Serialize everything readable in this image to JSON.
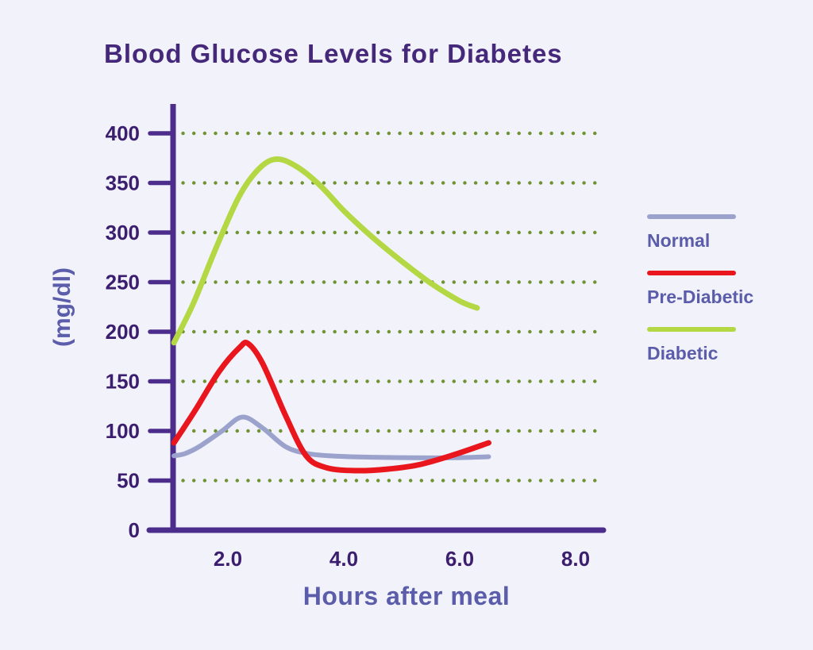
{
  "colors": {
    "background": "#f2f2fb",
    "title-text": "#46287a",
    "axis-line": "#4c2d8c",
    "tick-text": "#3b1e6e",
    "label-text": "#5b5dab",
    "grid-dot": "#6f9331"
  },
  "title": {
    "text": "Blood Glucose Levels for Diabetes"
  },
  "chart_data": {
    "type": "line",
    "title": "Blood Glucose Levels for Diabetes",
    "xlabel": "Hours after meal",
    "ylabel": "(mg/dl)",
    "xlim": [
      1.0,
      8.5
    ],
    "ylim": [
      0,
      430
    ],
    "x_ticks": [
      {
        "pos": 2,
        "label": "2.0"
      },
      {
        "pos": 4,
        "label": "4.0"
      },
      {
        "pos": 6,
        "label": "6.0"
      },
      {
        "pos": 8,
        "label": "8.0"
      }
    ],
    "y_ticks": [
      0,
      50,
      100,
      150,
      200,
      250,
      300,
      350,
      400
    ],
    "grid": "horizontal-dotted",
    "legend_position": "right",
    "series": [
      {
        "name": "Normal",
        "color": "#9ba3cd",
        "stroke_width": 6,
        "points": [
          [
            1.07,
            75
          ],
          [
            1.25,
            77
          ],
          [
            1.5,
            84
          ],
          [
            1.9,
            100
          ],
          [
            2.25,
            114
          ],
          [
            2.6,
            103
          ],
          [
            3.0,
            84
          ],
          [
            3.4,
            77
          ],
          [
            3.9,
            74.5
          ],
          [
            4.5,
            73.5
          ],
          [
            5.2,
            73
          ],
          [
            5.9,
            73
          ],
          [
            6.5,
            74
          ]
        ]
      },
      {
        "name": "Pre-Diabetic",
        "color": "#e9161d",
        "stroke_width": 7,
        "points": [
          [
            1.07,
            88
          ],
          [
            1.45,
            122
          ],
          [
            1.85,
            160
          ],
          [
            2.2,
            184
          ],
          [
            2.35,
            188
          ],
          [
            2.6,
            168
          ],
          [
            3.0,
            115
          ],
          [
            3.35,
            75
          ],
          [
            3.7,
            63
          ],
          [
            4.2,
            60
          ],
          [
            4.75,
            61.5
          ],
          [
            5.3,
            66
          ],
          [
            5.9,
            76
          ],
          [
            6.5,
            88
          ]
        ]
      },
      {
        "name": "Diabetic",
        "color": "#b4d843",
        "stroke_width": 7,
        "points": [
          [
            1.07,
            189
          ],
          [
            1.4,
            228
          ],
          [
            1.8,
            285
          ],
          [
            2.2,
            337
          ],
          [
            2.55,
            365
          ],
          [
            2.85,
            374
          ],
          [
            3.2,
            366
          ],
          [
            3.6,
            347
          ],
          [
            4.0,
            322
          ],
          [
            4.5,
            295
          ],
          [
            5.0,
            271
          ],
          [
            5.5,
            249
          ],
          [
            6.0,
            231
          ],
          [
            6.3,
            224
          ]
        ]
      }
    ]
  }
}
